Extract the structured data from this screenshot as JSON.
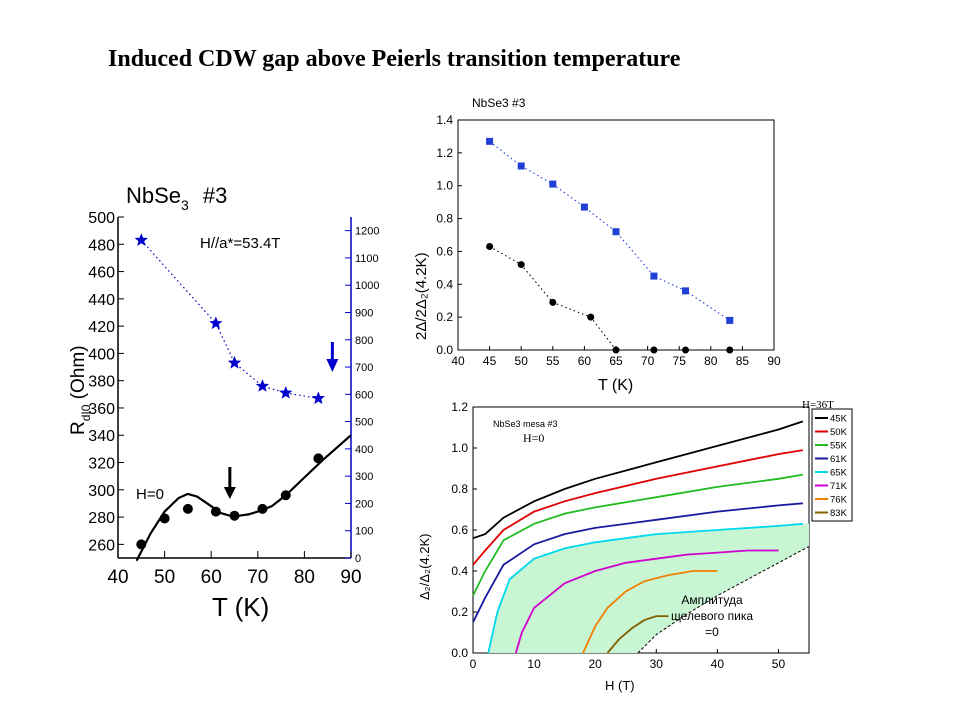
{
  "page": {
    "title": "Induced CDW gap above Peierls transition temperature"
  },
  "chart_data": [
    {
      "type": "scatter",
      "sample_title": "NbSe",
      "sample_sub": "3",
      "sample_num": "#3",
      "xlabel": "T (K)",
      "ylabel_main": "R",
      "ylabel_sub": "dI0",
      "ylabel_rest": " (Ohm)",
      "xlim": [
        40,
        90
      ],
      "xticks": [
        40,
        50,
        60,
        70,
        80,
        90
      ],
      "ylim_left": [
        250,
        500
      ],
      "yticks_left": [
        260,
        280,
        300,
        320,
        340,
        360,
        380,
        400,
        420,
        440,
        460,
        480,
        500
      ],
      "ylim_right": [
        0,
        1250
      ],
      "yticks_right": [
        0,
        100,
        200,
        300,
        400,
        500,
        600,
        700,
        800,
        900,
        1000,
        1100,
        1200
      ],
      "annotations": {
        "h_field": "H//a*=53.4T",
        "h_zero": "H=0"
      },
      "series": [
        {
          "axis": "left",
          "marker": "circle",
          "color": "#000000",
          "x": [
            45,
            50,
            55,
            61,
            65,
            71,
            76,
            83
          ],
          "y": [
            260,
            279,
            286,
            284,
            281,
            286,
            296,
            323
          ]
        },
        {
          "axis": "right",
          "marker": "star",
          "color": "#0000cc",
          "x": [
            45,
            61,
            65,
            71,
            76,
            83
          ],
          "y": [
            1165,
            860,
            715,
            630,
            605,
            585
          ]
        }
      ],
      "fit_curve": {
        "x": [
          44,
          47,
          50,
          53,
          55,
          57,
          60,
          62,
          64,
          66,
          68,
          70,
          73,
          76,
          80,
          84,
          90
        ],
        "y": [
          248,
          268,
          284,
          294,
          297,
          295,
          288,
          283,
          281,
          281,
          282,
          284,
          288,
          296,
          309,
          322,
          340
        ]
      },
      "arrows": {
        "left_x": 64,
        "right_x": 86
      }
    },
    {
      "type": "scatter",
      "title": "NbSe3 #3",
      "xlabel": "T (K)",
      "ylabel": "2Δ/2Δ₂(4.2K)",
      "xlim": [
        40,
        90
      ],
      "xticks": [
        40,
        45,
        50,
        55,
        60,
        65,
        70,
        75,
        80,
        85,
        90
      ],
      "ylim": [
        0,
        1.4
      ],
      "yticks": [
        "0.0",
        "0.2",
        "0.4",
        "0.6",
        "0.8",
        "1.0",
        "1.2",
        "1.4"
      ],
      "series": [
        {
          "marker": "square",
          "color": "#1f3fd6",
          "x": [
            45,
            50,
            55,
            60,
            65,
            71,
            76,
            83
          ],
          "y": [
            1.27,
            1.12,
            1.01,
            0.87,
            0.72,
            0.45,
            0.36,
            0.18
          ]
        },
        {
          "marker": "circle",
          "color": "#000000",
          "x": [
            45,
            50,
            55,
            61,
            65,
            71,
            76,
            83
          ],
          "y": [
            0.63,
            0.52,
            0.29,
            0.2,
            0.0,
            0.0,
            0.0,
            0.0
          ]
        }
      ]
    },
    {
      "type": "line",
      "title": "NbSe3 mesa #3",
      "subtitle": "H=0",
      "xlabel": "H (T)",
      "ylabel": "Δ₂/Δ₂(4.2K)",
      "xlim": [
        0,
        55
      ],
      "xticks": [
        0,
        10,
        20,
        30,
        40,
        50
      ],
      "ylim": [
        0,
        1.2
      ],
      "yticks": [
        "0.0",
        "0.2",
        "0.4",
        "0.6",
        "0.8",
        "1.0",
        "1.2"
      ],
      "annotation_lines": [
        "Амплитуда",
        "щелевого пика",
        "=0"
      ],
      "legend_header": "H=36T",
      "legend": [
        {
          "name": "45K",
          "color": "#000000"
        },
        {
          "name": "50K",
          "color": "#e00000"
        },
        {
          "name": "55K",
          "color": "#22bb22"
        },
        {
          "name": "61K",
          "color": "#1a1aa0"
        },
        {
          "name": "65K",
          "color": "#00d8f0"
        },
        {
          "name": "71K",
          "color": "#d000d0"
        },
        {
          "name": "76K",
          "color": "#f08000"
        },
        {
          "name": "83K",
          "color": "#806000"
        }
      ],
      "series": [
        {
          "name": "45K",
          "x": [
            0,
            2,
            5,
            10,
            15,
            20,
            30,
            40,
            50,
            54
          ],
          "y": [
            0.56,
            0.58,
            0.66,
            0.74,
            0.8,
            0.85,
            0.93,
            1.01,
            1.09,
            1.13
          ]
        },
        {
          "name": "50K",
          "x": [
            0,
            2,
            5,
            10,
            15,
            20,
            30,
            40,
            50,
            54
          ],
          "y": [
            0.43,
            0.5,
            0.6,
            0.69,
            0.74,
            0.78,
            0.85,
            0.91,
            0.97,
            0.99
          ]
        },
        {
          "name": "55K",
          "x": [
            0,
            2,
            5,
            10,
            15,
            20,
            30,
            40,
            50,
            54
          ],
          "y": [
            0.28,
            0.4,
            0.55,
            0.63,
            0.68,
            0.71,
            0.76,
            0.81,
            0.85,
            0.87
          ]
        },
        {
          "name": "61K",
          "x": [
            0,
            2,
            5,
            10,
            15,
            20,
            30,
            40,
            50,
            54
          ],
          "y": [
            0.15,
            0.27,
            0.43,
            0.53,
            0.58,
            0.61,
            0.65,
            0.69,
            0.72,
            0.73
          ]
        },
        {
          "name": "65K",
          "x": [
            2.5,
            4,
            6,
            10,
            15,
            20,
            30,
            40,
            50,
            54
          ],
          "y": [
            0.0,
            0.2,
            0.36,
            0.46,
            0.51,
            0.54,
            0.58,
            0.6,
            0.62,
            0.63
          ]
        },
        {
          "name": "71K",
          "x": [
            7,
            8,
            10,
            15,
            20,
            25,
            30,
            35,
            40,
            45,
            50
          ],
          "y": [
            0.0,
            0.1,
            0.22,
            0.34,
            0.4,
            0.44,
            0.46,
            0.48,
            0.49,
            0.5,
            0.5
          ]
        },
        {
          "name": "76K",
          "x": [
            18,
            20,
            22,
            25,
            28,
            32,
            36,
            40
          ],
          "y": [
            0.0,
            0.13,
            0.22,
            0.3,
            0.35,
            0.38,
            0.4,
            0.4
          ]
        },
        {
          "name": "83K",
          "x": [
            22,
            24,
            26,
            28,
            30,
            32
          ],
          "y": [
            0.0,
            0.07,
            0.12,
            0.16,
            0.18,
            0.18
          ]
        }
      ],
      "boundary": {
        "x": [
          27,
          30,
          35,
          40,
          45,
          50,
          55
        ],
        "y": [
          0.0,
          0.09,
          0.19,
          0.28,
          0.36,
          0.44,
          0.52
        ]
      }
    }
  ]
}
